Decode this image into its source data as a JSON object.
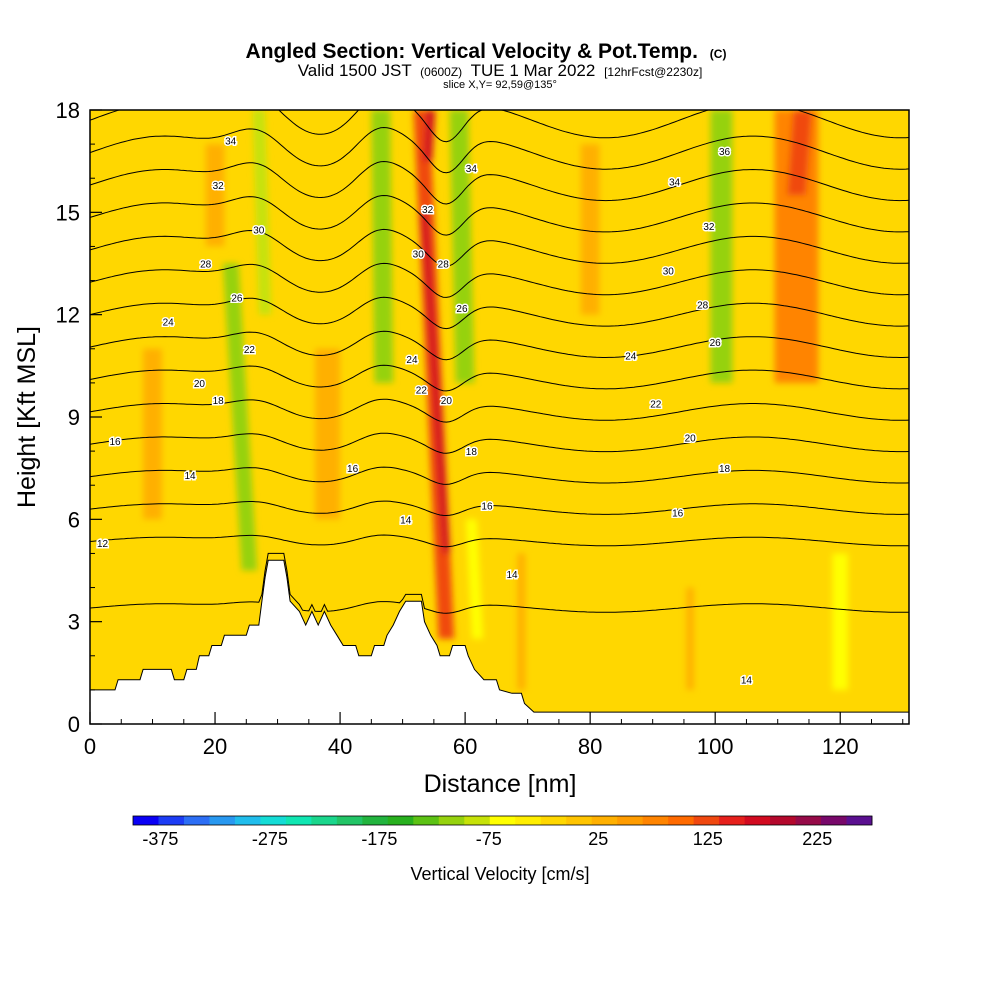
{
  "header": {
    "title": "Angled Section: Vertical Velocity & Pot.Temp.",
    "title_unit": "(C)",
    "valid_prefix": "Valid 1500 JST",
    "valid_utc": "(0600Z)",
    "valid_date": "TUE 1 Mar 2022",
    "forecast_info": "[12hrFcst@2230z]",
    "slice_info": "slice X,Y= 92,59@135°"
  },
  "chart_data": {
    "type": "heatmap",
    "title": "Angled Section: Vertical Velocity & Pot.Temp.",
    "xlabel": "Distance [nm]",
    "ylabel": "Height [Kft MSL]",
    "xlim": [
      0,
      131
    ],
    "ylim": [
      0,
      18
    ],
    "x_ticks": [
      0,
      20,
      40,
      60,
      80,
      100,
      120
    ],
    "y_ticks": [
      0,
      3,
      6,
      9,
      12,
      15,
      18
    ],
    "background_velocity": 20,
    "velocity_bands": [
      {
        "x_bottom": 25.5,
        "x_top": 22.5,
        "y_bottom": 4.5,
        "y_top": 13.5,
        "width": 2.5,
        "value": -95
      },
      {
        "x_bottom": 28,
        "x_top": 27,
        "y_bottom": 12,
        "y_top": 18,
        "width": 2.0,
        "value": -55
      },
      {
        "x_bottom": 47,
        "x_top": 46.5,
        "y_bottom": 10,
        "y_top": 18,
        "width": 3.0,
        "value": -95
      },
      {
        "x_bottom": 60,
        "x_top": 59,
        "y_bottom": 10,
        "y_top": 18,
        "width": 3.0,
        "value": -85
      },
      {
        "x_bottom": 62,
        "x_top": 61,
        "y_bottom": 2.5,
        "y_top": 6,
        "width": 1.8,
        "value": -45
      },
      {
        "x_bottom": 101,
        "x_top": 101,
        "y_bottom": 10,
        "y_top": 18,
        "width": 3.5,
        "value": -80
      },
      {
        "x_bottom": 57,
        "x_top": 53,
        "y_bottom": 2.5,
        "y_top": 18,
        "width": 2.5,
        "value": 170
      },
      {
        "x_bottom": 57,
        "x_top": 53.5,
        "y_bottom": 5,
        "y_top": 15,
        "width": 1.2,
        "value": 210
      },
      {
        "x_bottom": 54,
        "x_top": 54.5,
        "y_bottom": 16.5,
        "y_top": 18,
        "width": 1.4,
        "value": 210
      },
      {
        "x_bottom": 113,
        "x_top": 113,
        "y_bottom": 10,
        "y_top": 18,
        "width": 7,
        "value": 115
      },
      {
        "x_bottom": 113,
        "x_top": 114,
        "y_bottom": 15.5,
        "y_top": 18,
        "width": 3,
        "value": 150
      },
      {
        "x_bottom": 38,
        "x_top": 38,
        "y_bottom": 6,
        "y_top": 11,
        "width": 4,
        "value": 70
      },
      {
        "x_bottom": 20,
        "x_top": 20,
        "y_bottom": 14,
        "y_top": 17,
        "width": 3,
        "value": 60
      },
      {
        "x_bottom": 69,
        "x_top": 69,
        "y_bottom": 1,
        "y_top": 5,
        "width": 1.3,
        "value": 65
      },
      {
        "x_bottom": 96,
        "x_top": 96,
        "y_bottom": 1,
        "y_top": 4,
        "width": 1.2,
        "value": 65
      },
      {
        "x_bottom": 10,
        "x_top": 10,
        "y_bottom": 6,
        "y_top": 11,
        "width": 3,
        "value": 55
      },
      {
        "x_bottom": 80,
        "x_top": 80,
        "y_bottom": 12,
        "y_top": 17,
        "width": 3,
        "value": 55
      },
      {
        "x_bottom": 120,
        "x_top": 120,
        "y_bottom": 1,
        "y_top": 5,
        "width": 2.5,
        "value": -40
      }
    ],
    "terrain": [
      [
        0,
        1.0
      ],
      [
        4,
        1.0
      ],
      [
        4.5,
        1.3
      ],
      [
        8,
        1.3
      ],
      [
        8.5,
        1.6
      ],
      [
        13,
        1.6
      ],
      [
        13.5,
        1.3
      ],
      [
        15,
        1.3
      ],
      [
        15.5,
        1.6
      ],
      [
        17,
        1.6
      ],
      [
        17.5,
        2.0
      ],
      [
        19,
        2.0
      ],
      [
        19.5,
        2.3
      ],
      [
        21,
        2.3
      ],
      [
        21.5,
        2.6
      ],
      [
        25,
        2.6
      ],
      [
        25.5,
        2.9
      ],
      [
        27,
        2.9
      ],
      [
        27.5,
        3.6
      ],
      [
        28,
        4.3
      ],
      [
        28.5,
        4.8
      ],
      [
        31,
        4.8
      ],
      [
        31.5,
        4.3
      ],
      [
        32,
        3.6
      ],
      [
        33.5,
        3.3
      ],
      [
        34.5,
        2.9
      ],
      [
        35.5,
        3.3
      ],
      [
        36.5,
        2.9
      ],
      [
        37.5,
        3.3
      ],
      [
        38.5,
        2.9
      ],
      [
        39.5,
        2.6
      ],
      [
        40.5,
        2.3
      ],
      [
        42.5,
        2.3
      ],
      [
        43,
        2.0
      ],
      [
        45,
        2.0
      ],
      [
        45.5,
        2.3
      ],
      [
        47,
        2.3
      ],
      [
        47.5,
        2.6
      ],
      [
        48.5,
        2.9
      ],
      [
        49.5,
        3.3
      ],
      [
        50.5,
        3.6
      ],
      [
        53,
        3.6
      ],
      [
        53.5,
        3.0
      ],
      [
        54.5,
        2.6
      ],
      [
        55.5,
        2.3
      ],
      [
        56,
        2.0
      ],
      [
        57.5,
        2.0
      ],
      [
        58,
        2.3
      ],
      [
        60,
        2.3
      ],
      [
        60.5,
        2.0
      ],
      [
        61.5,
        1.6
      ],
      [
        63,
        1.3
      ],
      [
        65,
        1.3
      ],
      [
        65.5,
        1.0
      ],
      [
        67.5,
        0.9
      ],
      [
        69,
        0.9
      ],
      [
        69.5,
        0.6
      ],
      [
        71,
        0.35
      ],
      [
        131,
        0.35
      ]
    ],
    "theta_contours": [
      {
        "base": 5.35,
        "values": [
          12,
          14,
          16,
          18,
          20,
          22,
          24,
          26,
          28,
          30,
          32,
          34,
          36,
          38
        ]
      },
      {
        "base": 3.4,
        "values": [
          14
        ]
      }
    ],
    "theta_labels": [
      {
        "x": 2,
        "y": 5.3,
        "value": 12
      },
      {
        "x": 16,
        "y": 7.3,
        "value": 14
      },
      {
        "x": 4,
        "y": 8.3,
        "value": 16
      },
      {
        "x": 20.5,
        "y": 9.5,
        "value": 18
      },
      {
        "x": 17.5,
        "y": 10.0,
        "value": 20
      },
      {
        "x": 25.5,
        "y": 11.0,
        "value": 22
      },
      {
        "x": 12.5,
        "y": 11.8,
        "value": 24
      },
      {
        "x": 23.5,
        "y": 12.5,
        "value": 26
      },
      {
        "x": 18.5,
        "y": 13.5,
        "value": 28
      },
      {
        "x": 27,
        "y": 14.5,
        "value": 30
      },
      {
        "x": 20.5,
        "y": 15.8,
        "value": 32
      },
      {
        "x": 22.5,
        "y": 17.1,
        "value": 34
      },
      {
        "x": 50.5,
        "y": 6.0,
        "value": 14
      },
      {
        "x": 42,
        "y": 7.5,
        "value": 16
      },
      {
        "x": 63.5,
        "y": 6.4,
        "value": 16
      },
      {
        "x": 67.5,
        "y": 4.4,
        "value": 14
      },
      {
        "x": 61,
        "y": 8.0,
        "value": 18
      },
      {
        "x": 57,
        "y": 9.5,
        "value": 20
      },
      {
        "x": 53,
        "y": 9.8,
        "value": 22
      },
      {
        "x": 51.5,
        "y": 10.7,
        "value": 24
      },
      {
        "x": 59.5,
        "y": 12.2,
        "value": 26
      },
      {
        "x": 56.5,
        "y": 13.5,
        "value": 28
      },
      {
        "x": 52.5,
        "y": 13.8,
        "value": 30
      },
      {
        "x": 54,
        "y": 15.1,
        "value": 32
      },
      {
        "x": 61,
        "y": 16.3,
        "value": 34
      },
      {
        "x": 94,
        "y": 6.2,
        "value": 16
      },
      {
        "x": 101.5,
        "y": 7.5,
        "value": 18
      },
      {
        "x": 96,
        "y": 8.4,
        "value": 20
      },
      {
        "x": 90.5,
        "y": 9.4,
        "value": 22
      },
      {
        "x": 86.5,
        "y": 10.8,
        "value": 24
      },
      {
        "x": 100,
        "y": 11.2,
        "value": 26
      },
      {
        "x": 98,
        "y": 12.3,
        "value": 28
      },
      {
        "x": 92.5,
        "y": 13.3,
        "value": 30
      },
      {
        "x": 99,
        "y": 14.6,
        "value": 32
      },
      {
        "x": 93.5,
        "y": 15.9,
        "value": 34
      },
      {
        "x": 101.5,
        "y": 16.8,
        "value": 36
      },
      {
        "x": 105,
        "y": 1.3,
        "value": 14
      }
    ]
  },
  "colorbar": {
    "label": "Vertical Velocity [cm/s]",
    "min": -400,
    "max": 275,
    "step": 25,
    "tick_values": [
      -375,
      -275,
      -175,
      -75,
      25,
      125,
      225
    ],
    "tick_labels": [
      "-375",
      "-275",
      "-175",
      "-75",
      "25",
      "125",
      "225"
    ],
    "colors": [
      "#0a00f5",
      "#1c3cf5",
      "#2c6ef5",
      "#2898f0",
      "#20bdec",
      "#14dcd6",
      "#10e6b2",
      "#1ad68c",
      "#22c466",
      "#22b43e",
      "#28b01e",
      "#5cc214",
      "#96d20e",
      "#c6e208",
      "#ffff00",
      "#ffee00",
      "#ffd700",
      "#ffc400",
      "#ffb000",
      "#ff9c00",
      "#ff8400",
      "#ff6a00",
      "#f04810",
      "#e6201c",
      "#d20a20",
      "#b4082c",
      "#960a48",
      "#78086a",
      "#5a1090"
    ]
  }
}
